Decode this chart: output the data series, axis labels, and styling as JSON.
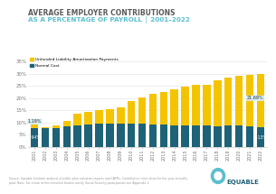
{
  "years": [
    "2001",
    "2002",
    "2003",
    "2004",
    "2005",
    "2006",
    "2007",
    "2008",
    "2009",
    "2010",
    "2011",
    "2012",
    "2013",
    "2014",
    "2015",
    "2016",
    "2017",
    "2018",
    "2019",
    "2020",
    "2021",
    "2022"
  ],
  "normal_cost": [
    7.94,
    7.8,
    7.9,
    8.5,
    8.8,
    9.2,
    9.5,
    9.7,
    9.8,
    9.7,
    9.5,
    9.4,
    9.2,
    9.0,
    8.8,
    8.7,
    8.7,
    8.6,
    8.7,
    8.8,
    8.5,
    8.13
  ],
  "unfunded": [
    1.19,
    0.5,
    0.8,
    2.2,
    4.8,
    5.2,
    5.8,
    6.0,
    6.5,
    9.0,
    10.8,
    12.5,
    13.5,
    14.8,
    16.0,
    17.0,
    17.0,
    18.7,
    19.9,
    20.5,
    21.0,
    21.69
  ],
  "bar_normal_color": "#1e6278",
  "bar_unfunded_color": "#f5c400",
  "background_color": "#ffffff",
  "title_line1": "AVERAGE EMPLOYER CONTRIBUTIONS",
  "title_line2": "AS A PERCENTAGE OF PAYROLL │ 2001–2022",
  "title_color1": "#5a5a5a",
  "title_color2": "#5abfce",
  "yticks": [
    0,
    5,
    10,
    15,
    20,
    25,
    30,
    35
  ],
  "ytick_labels": [
    "0%",
    "5%",
    "10%",
    "15%",
    "20%",
    "25%",
    "30%",
    "35%"
  ],
  "ylim": [
    0,
    37
  ],
  "legend_label_unfunded": "Unfunded Liability Amortization Payments",
  "legend_label_normal": "Normal Cost",
  "annotation_2001_unfunded": "1.19%",
  "annotation_2001_normal": "7.94%",
  "annotation_2022_unfunded": "21.69%",
  "annotation_2022_normal": "8.13%",
  "annotation_bg": "#d6eef3",
  "source_text": "Source: Equable Institute analysis of public plan valuation reports and CAFRs. Contribution rates show for the year annually\npaid. Note: For a look at this trendline broken out by Social Security participation see Appendix 1.",
  "equable_logo_text": "EQUABLE",
  "logo_color": "#1e6278",
  "accent_color": "#5abfce"
}
